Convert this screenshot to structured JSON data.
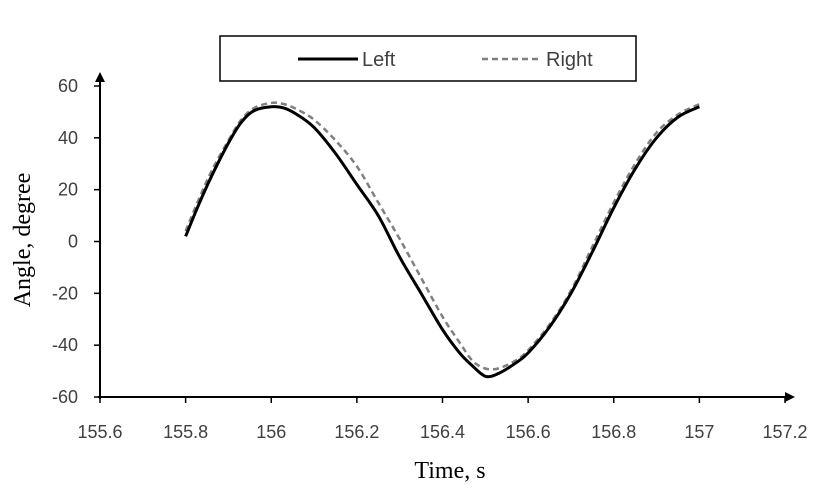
{
  "chart_data": {
    "type": "line",
    "xlabel": "Time, s",
    "ylabel": "Angle, degree",
    "xlim": [
      155.6,
      157.2
    ],
    "ylim": [
      -60,
      60
    ],
    "xticks": [
      "155.6",
      "155.8",
      "156",
      "156.2",
      "156.4",
      "156.6",
      "156.8",
      "157",
      "157.2"
    ],
    "yticks": [
      "60",
      "40",
      "20",
      "0",
      "-20",
      "-40",
      "-60"
    ],
    "legend_position": "top-center",
    "grid": false,
    "series": [
      {
        "name": "Left",
        "style": "solid",
        "color": "#000000",
        "points": [
          [
            155.8,
            2
          ],
          [
            155.83,
            14
          ],
          [
            155.86,
            25
          ],
          [
            155.9,
            38
          ],
          [
            155.93,
            46
          ],
          [
            155.96,
            50.5
          ],
          [
            156.0,
            52
          ],
          [
            156.03,
            51.5
          ],
          [
            156.06,
            49
          ],
          [
            156.1,
            44
          ],
          [
            156.15,
            34
          ],
          [
            156.2,
            22
          ],
          [
            156.25,
            10
          ],
          [
            156.3,
            -6
          ],
          [
            156.35,
            -20
          ],
          [
            156.4,
            -34
          ],
          [
            156.44,
            -43
          ],
          [
            156.47,
            -48
          ],
          [
            156.5,
            -52
          ],
          [
            156.53,
            -51
          ],
          [
            156.57,
            -47
          ],
          [
            156.6,
            -43
          ],
          [
            156.65,
            -33
          ],
          [
            156.7,
            -20
          ],
          [
            156.75,
            -4
          ],
          [
            156.8,
            13
          ],
          [
            156.85,
            28
          ],
          [
            156.9,
            40
          ],
          [
            156.95,
            48
          ],
          [
            157.0,
            52
          ]
        ]
      },
      {
        "name": "Right",
        "style": "dashed",
        "color": "#808080",
        "points": [
          [
            155.8,
            4
          ],
          [
            155.83,
            16
          ],
          [
            155.86,
            27
          ],
          [
            155.9,
            39
          ],
          [
            155.93,
            47
          ],
          [
            155.96,
            51.5
          ],
          [
            156.0,
            53.5
          ],
          [
            156.03,
            53
          ],
          [
            156.06,
            51
          ],
          [
            156.1,
            47
          ],
          [
            156.15,
            39
          ],
          [
            156.2,
            29
          ],
          [
            156.25,
            15
          ],
          [
            156.3,
            1
          ],
          [
            156.35,
            -14
          ],
          [
            156.4,
            -29
          ],
          [
            156.44,
            -39
          ],
          [
            156.47,
            -46
          ],
          [
            156.5,
            -49
          ],
          [
            156.53,
            -49
          ],
          [
            156.57,
            -46
          ],
          [
            156.6,
            -42
          ],
          [
            156.65,
            -32
          ],
          [
            156.7,
            -19
          ],
          [
            156.75,
            -2
          ],
          [
            156.8,
            15
          ],
          [
            156.85,
            30
          ],
          [
            156.9,
            42
          ],
          [
            156.95,
            49
          ],
          [
            157.0,
            53
          ]
        ]
      }
    ]
  }
}
